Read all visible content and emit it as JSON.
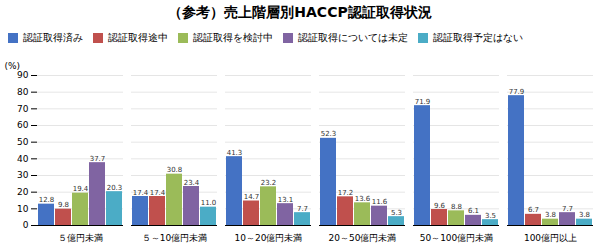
{
  "chart_data": {
    "type": "bar",
    "title": "（参考）売上階層別HACCP認証取得状況",
    "ylabel": "(%)",
    "categories": [
      "５億円未満",
      "５～10億円未満",
      "10～20億円未満",
      "20～50億円未満",
      "50～100億円未満",
      "100億円以上"
    ],
    "series": [
      {
        "name": "認証取得済み",
        "color": "#4472C4",
        "values": [
          12.8,
          17.4,
          41.3,
          52.3,
          71.9,
          77.9
        ]
      },
      {
        "name": "認証取得途中",
        "color": "#C0504D",
        "values": [
          9.8,
          17.4,
          14.7,
          17.2,
          9.6,
          6.7
        ]
      },
      {
        "name": "認証取得を検討中",
        "color": "#9BBB59",
        "values": [
          19.4,
          30.8,
          23.2,
          13.6,
          8.8,
          3.8
        ]
      },
      {
        "name": "認証取得については未定",
        "color": "#8064A2",
        "values": [
          37.7,
          23.4,
          13.1,
          11.6,
          6.1,
          7.7
        ]
      },
      {
        "name": "認証取得予定はない",
        "color": "#4BACC6",
        "values": [
          20.3,
          11.0,
          7.7,
          5.3,
          3.5,
          3.8
        ],
        "value_labels": [
          "20.3",
          "11.0",
          "7.7",
          "5.3",
          "3.5",
          "3.8"
        ]
      }
    ],
    "ylim": [
      0,
      90
    ],
    "yticks": [
      0,
      10,
      20,
      30,
      40,
      50,
      60,
      70,
      80,
      90
    ],
    "grid": true,
    "data_labels": true
  }
}
